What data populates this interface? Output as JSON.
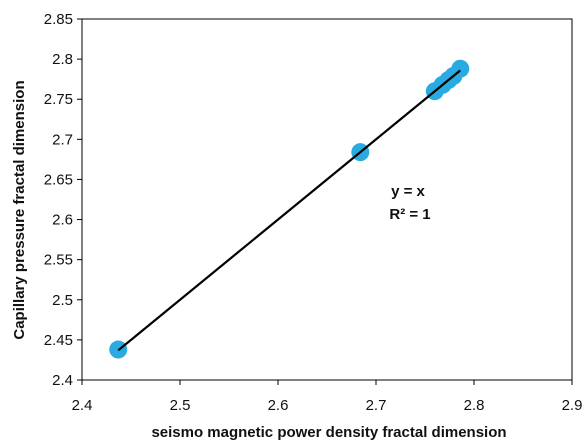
{
  "chart_data": {
    "type": "scatter",
    "title": "",
    "xlabel": "seismo magnetic power density fractal dimension",
    "ylabel": "Capillary pressure fractal dimension",
    "xlim": [
      2.4,
      2.9
    ],
    "ylim": [
      2.4,
      2.85
    ],
    "x_ticks": [
      "2.4",
      "2.5",
      "2.6",
      "2.7",
      "2.8",
      "2.9"
    ],
    "y_ticks": [
      "2.4",
      "2.45",
      "2.5",
      "2.55",
      "2.6",
      "2.65",
      "2.7",
      "2.75",
      "2.8",
      "2.85"
    ],
    "x_tick_values": [
      2.4,
      2.5,
      2.6,
      2.7,
      2.8,
      2.9
    ],
    "y_tick_values": [
      2.4,
      2.45,
      2.5,
      2.55,
      2.6,
      2.65,
      2.7,
      2.75,
      2.8,
      2.85
    ],
    "grid": false,
    "legend": false,
    "points": [
      {
        "x": 2.437,
        "y": 2.438
      },
      {
        "x": 2.684,
        "y": 2.684
      },
      {
        "x": 2.76,
        "y": 2.76
      },
      {
        "x": 2.768,
        "y": 2.768
      },
      {
        "x": 2.774,
        "y": 2.774
      },
      {
        "x": 2.779,
        "y": 2.779
      },
      {
        "x": 2.786,
        "y": 2.788
      }
    ],
    "trendline": {
      "x0": 2.437,
      "x1": 2.786,
      "slope": 1,
      "intercept": 0
    },
    "annotations": {
      "equation": "y = x",
      "r_squared": "R² = 1"
    },
    "colors": {
      "marker": "#29abe2",
      "trendline": "#000000",
      "axis": "#000000"
    }
  }
}
